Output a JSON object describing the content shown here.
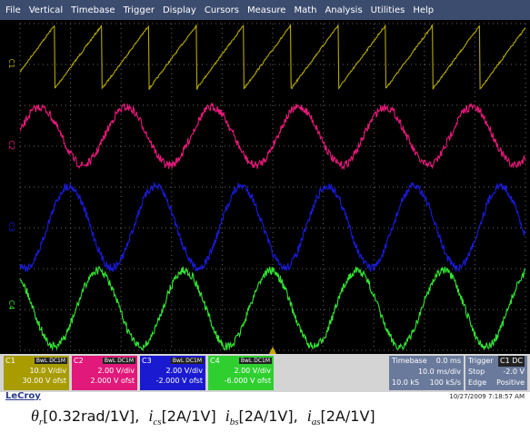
{
  "menu": [
    "File",
    "Vertical",
    "Timebase",
    "Trigger",
    "Display",
    "Cursors",
    "Measure",
    "Math",
    "Analysis",
    "Utilities",
    "Help"
  ],
  "channels": [
    {
      "name": "C1",
      "coupling": "BwL DC1M",
      "scale": "10.0 V/div",
      "offset": "30.00 V ofst"
    },
    {
      "name": "C2",
      "coupling": "BwL DC1M",
      "scale": "2.00 V/div",
      "offset": "2.000 V ofst"
    },
    {
      "name": "C3",
      "coupling": "BwL DC1M",
      "scale": "2.00 V/div",
      "offset": "-2.000 V ofst"
    },
    {
      "name": "C4",
      "coupling": "BwL DC1M",
      "scale": "2.00 V/div",
      "offset": "-6.000 V ofst"
    }
  ],
  "timebase": {
    "title": "Timebase",
    "delay": "0.0 ms",
    "scale": "10.0 ms/div",
    "samples": "10.0 kS",
    "rate": "100 kS/s"
  },
  "trigger": {
    "title": "Trigger",
    "source": "C1 DC",
    "mode": "Stop",
    "level": "-2.0 V",
    "type": "Edge",
    "slope": "Positive"
  },
  "brand": "LeCroy",
  "timestamp": "10/27/2009 7:18:57 AM",
  "caption": [
    {
      "symbol": "θ",
      "subscript": "r",
      "scale": "[0.32rad/1V],"
    },
    {
      "symbol": "i",
      "subscript": "cs",
      "scale": "[2A/1V]"
    },
    {
      "symbol": "i",
      "subscript": "bs",
      "scale": "[2A/1V],"
    },
    {
      "symbol": "i",
      "subscript": "as",
      "scale": "[2A/1V]"
    }
  ]
}
